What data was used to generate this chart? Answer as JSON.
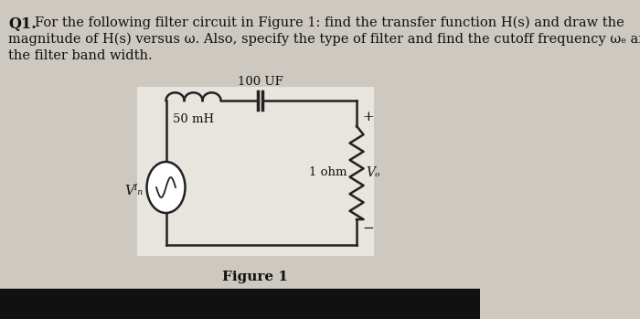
{
  "bg_color": "#cdc8c0",
  "text_color": "#111111",
  "q1_bold": "Q1.",
  "q1_text_line1": "For the following filter circuit in Figure 1: find the transfer function H(s) and draw the",
  "q1_text_line2": "magnitude of H(s) versus ω. Also, specify the type of filter and find the cutoff frequency ωₑ and",
  "q1_text_line3": "the filter band width.",
  "figure_label": "Figure 1",
  "label_50mH": "50 mH",
  "label_100UF": "100 UF",
  "label_1ohm": "1 ohm",
  "label_Vo": "Vₒ",
  "label_Vin": "Vᴵₙ",
  "label_plus": "+",
  "label_minus": "−",
  "circuit_bg": "#e8e4de",
  "wire_color": "#222222",
  "component_color": "#222222",
  "bottom_strip_color": "#111111"
}
